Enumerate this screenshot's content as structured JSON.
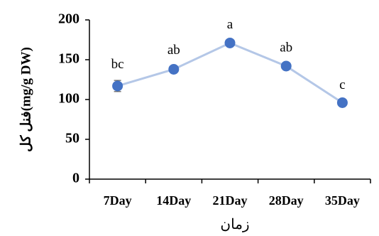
{
  "chart_data": {
    "type": "line",
    "title": "",
    "xlabel": "زمان",
    "ylabel": "فنل کل(mg/g DW)",
    "categories": [
      "7Day",
      "14Day",
      "21Day",
      "28Day",
      "35Day"
    ],
    "series": [
      {
        "values": [
          117,
          138,
          171,
          142,
          96
        ],
        "error": [
          7,
          4,
          3,
          3,
          2
        ],
        "labels": [
          "bc",
          "ab",
          "a",
          "ab",
          "c"
        ]
      }
    ],
    "ylim": [
      0,
      200
    ],
    "yticks": [
      0,
      50,
      100,
      150,
      200
    ],
    "grid": false,
    "colors": {
      "line": "#b4c7e7",
      "marker": "#4472c4",
      "axis": "#000000"
    }
  }
}
